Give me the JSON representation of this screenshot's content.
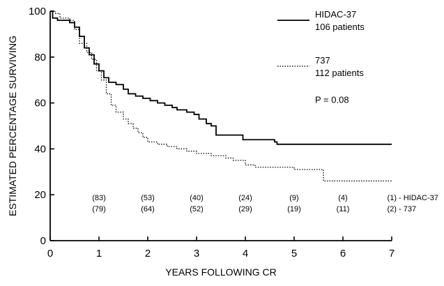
{
  "chart_data": {
    "type": "line",
    "xlabel": "YEARS FOLLOWING CR",
    "ylabel": "ESTIMATED PERCENTAGE SURVIVING",
    "xlim": [
      0,
      7
    ],
    "ylim": [
      0,
      100
    ],
    "x_ticks": [
      "0",
      "1",
      "2",
      "3",
      "4",
      "5",
      "6",
      "7"
    ],
    "y_ticks": [
      "0",
      "20",
      "40",
      "60",
      "80",
      "100"
    ],
    "grid": false,
    "legend_position": "top-right",
    "annotation": "P = 0.08",
    "series": [
      {
        "name": "HIDAC-37",
        "subtitle": "106 patients",
        "line_style": "solid",
        "color": "#000000",
        "points": [
          [
            0,
            100
          ],
          [
            0.05,
            97
          ],
          [
            0.15,
            96
          ],
          [
            0.4,
            95
          ],
          [
            0.5,
            93
          ],
          [
            0.6,
            89
          ],
          [
            0.7,
            84
          ],
          [
            0.8,
            81
          ],
          [
            0.9,
            77
          ],
          [
            1.0,
            74
          ],
          [
            1.1,
            71
          ],
          [
            1.2,
            69
          ],
          [
            1.35,
            68
          ],
          [
            1.5,
            66
          ],
          [
            1.6,
            64
          ],
          [
            1.75,
            63
          ],
          [
            1.9,
            62
          ],
          [
            2.05,
            61
          ],
          [
            2.2,
            60
          ],
          [
            2.35,
            59
          ],
          [
            2.5,
            58
          ],
          [
            2.6,
            57
          ],
          [
            2.8,
            56
          ],
          [
            2.95,
            55
          ],
          [
            3.05,
            53
          ],
          [
            3.2,
            51
          ],
          [
            3.3,
            50
          ],
          [
            3.4,
            46
          ],
          [
            3.6,
            46
          ],
          [
            3.85,
            46
          ],
          [
            3.95,
            44
          ],
          [
            4.6,
            43
          ],
          [
            4.65,
            42
          ],
          [
            5.0,
            42
          ],
          [
            7.0,
            42
          ]
        ]
      },
      {
        "name": "737",
        "subtitle": "112 patients",
        "line_style": "dotted",
        "color": "#000000",
        "points": [
          [
            0,
            100
          ],
          [
            0.1,
            99
          ],
          [
            0.2,
            97
          ],
          [
            0.4,
            96
          ],
          [
            0.5,
            92
          ],
          [
            0.6,
            86
          ],
          [
            0.75,
            82
          ],
          [
            0.85,
            79
          ],
          [
            0.95,
            74
          ],
          [
            1.05,
            70
          ],
          [
            1.15,
            64
          ],
          [
            1.25,
            59
          ],
          [
            1.35,
            56
          ],
          [
            1.5,
            53
          ],
          [
            1.6,
            51
          ],
          [
            1.7,
            49
          ],
          [
            1.8,
            47
          ],
          [
            1.9,
            45
          ],
          [
            2.0,
            43
          ],
          [
            2.2,
            42
          ],
          [
            2.4,
            41
          ],
          [
            2.6,
            40
          ],
          [
            2.8,
            39
          ],
          [
            3.0,
            38
          ],
          [
            3.3,
            37
          ],
          [
            3.6,
            36
          ],
          [
            3.75,
            35
          ],
          [
            4.0,
            33
          ],
          [
            4.2,
            32
          ],
          [
            4.4,
            32
          ],
          [
            5.0,
            31
          ],
          [
            5.6,
            31
          ],
          [
            5.6,
            26
          ],
          [
            7.0,
            26
          ]
        ]
      }
    ],
    "at_risk": {
      "x": [
        1,
        2,
        3,
        4,
        5,
        6,
        7
      ],
      "rows": [
        {
          "labels": [
            "(83)",
            "(53)",
            "(40)",
            "(24)",
            "(9)",
            "(4)",
            "(1)"
          ],
          "suffix": "- HIDAC-37"
        },
        {
          "labels": [
            "(79)",
            "(64)",
            "(52)",
            "(29)",
            "(19)",
            "(11)",
            "(2)"
          ],
          "suffix": "- 737"
        }
      ]
    }
  }
}
